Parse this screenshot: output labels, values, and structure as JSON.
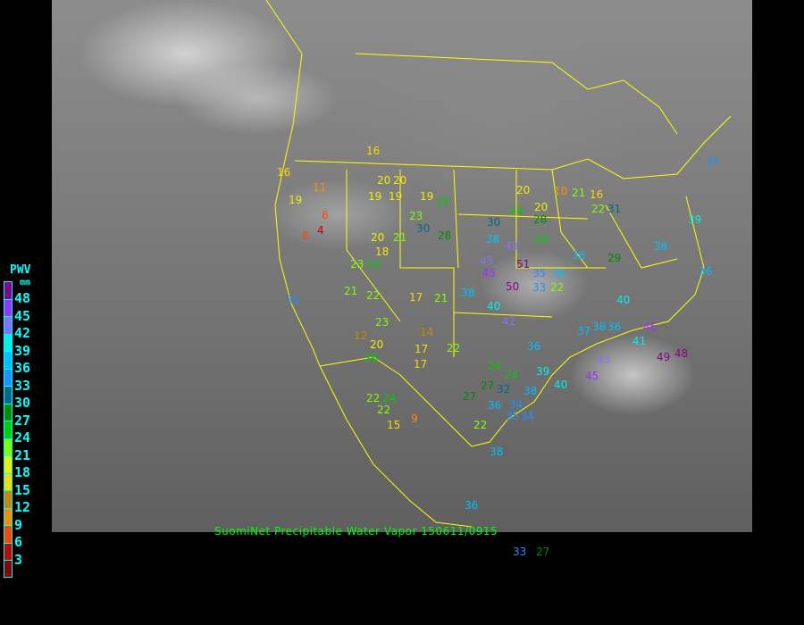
{
  "caption": "SuomiNet Precipitable Water Vapor 150611/0915",
  "legend": {
    "title": "PWV",
    "unit": "mm",
    "labels": [
      "48",
      "45",
      "42",
      "39",
      "36",
      "33",
      "30",
      "27",
      "24",
      "21",
      "18",
      "15",
      "12",
      "9",
      "6",
      "3"
    ],
    "colors": [
      "#8b008b",
      "#9b30ff",
      "#8470ff",
      "#00eeee",
      "#00bfff",
      "#1e90ff",
      "#00688b",
      "#008b00",
      "#00cd00",
      "#7fff00",
      "#eeee00",
      "#ffd700",
      "#cd8500",
      "#ff8c00",
      "#ff4500",
      "#cd0000",
      "#8b0000"
    ]
  },
  "border_color": "#ffff00",
  "stations": [
    "16",
    "20",
    "19",
    "11",
    "10",
    "20",
    "19",
    "19",
    "20",
    "25",
    "24",
    "20",
    "21",
    "16",
    "22",
    "19",
    "16",
    "20",
    "21",
    "23",
    "28",
    "30",
    "31",
    "28",
    "24",
    "23",
    "24",
    "43",
    "51",
    "50",
    "35",
    "33",
    "36",
    "30",
    "29",
    "22",
    "37",
    "21",
    "22",
    "18",
    "17",
    "21",
    "26",
    "23",
    "20",
    "17",
    "22",
    "15",
    "9",
    "36",
    "38",
    "43",
    "45",
    "42",
    "40",
    "38",
    "36",
    "39",
    "34",
    "38",
    "40",
    "48",
    "49",
    "46",
    "45",
    "43",
    "38",
    "27",
    "22",
    "24",
    "24",
    "27",
    "36",
    "35",
    "34",
    "27",
    "36",
    "38",
    "32",
    "33",
    "22",
    "41",
    "36",
    "40",
    "38",
    "36",
    "39",
    "35",
    "8",
    "4",
    "6",
    "12",
    "14",
    "17",
    "24",
    "35",
    "22"
  ]
}
